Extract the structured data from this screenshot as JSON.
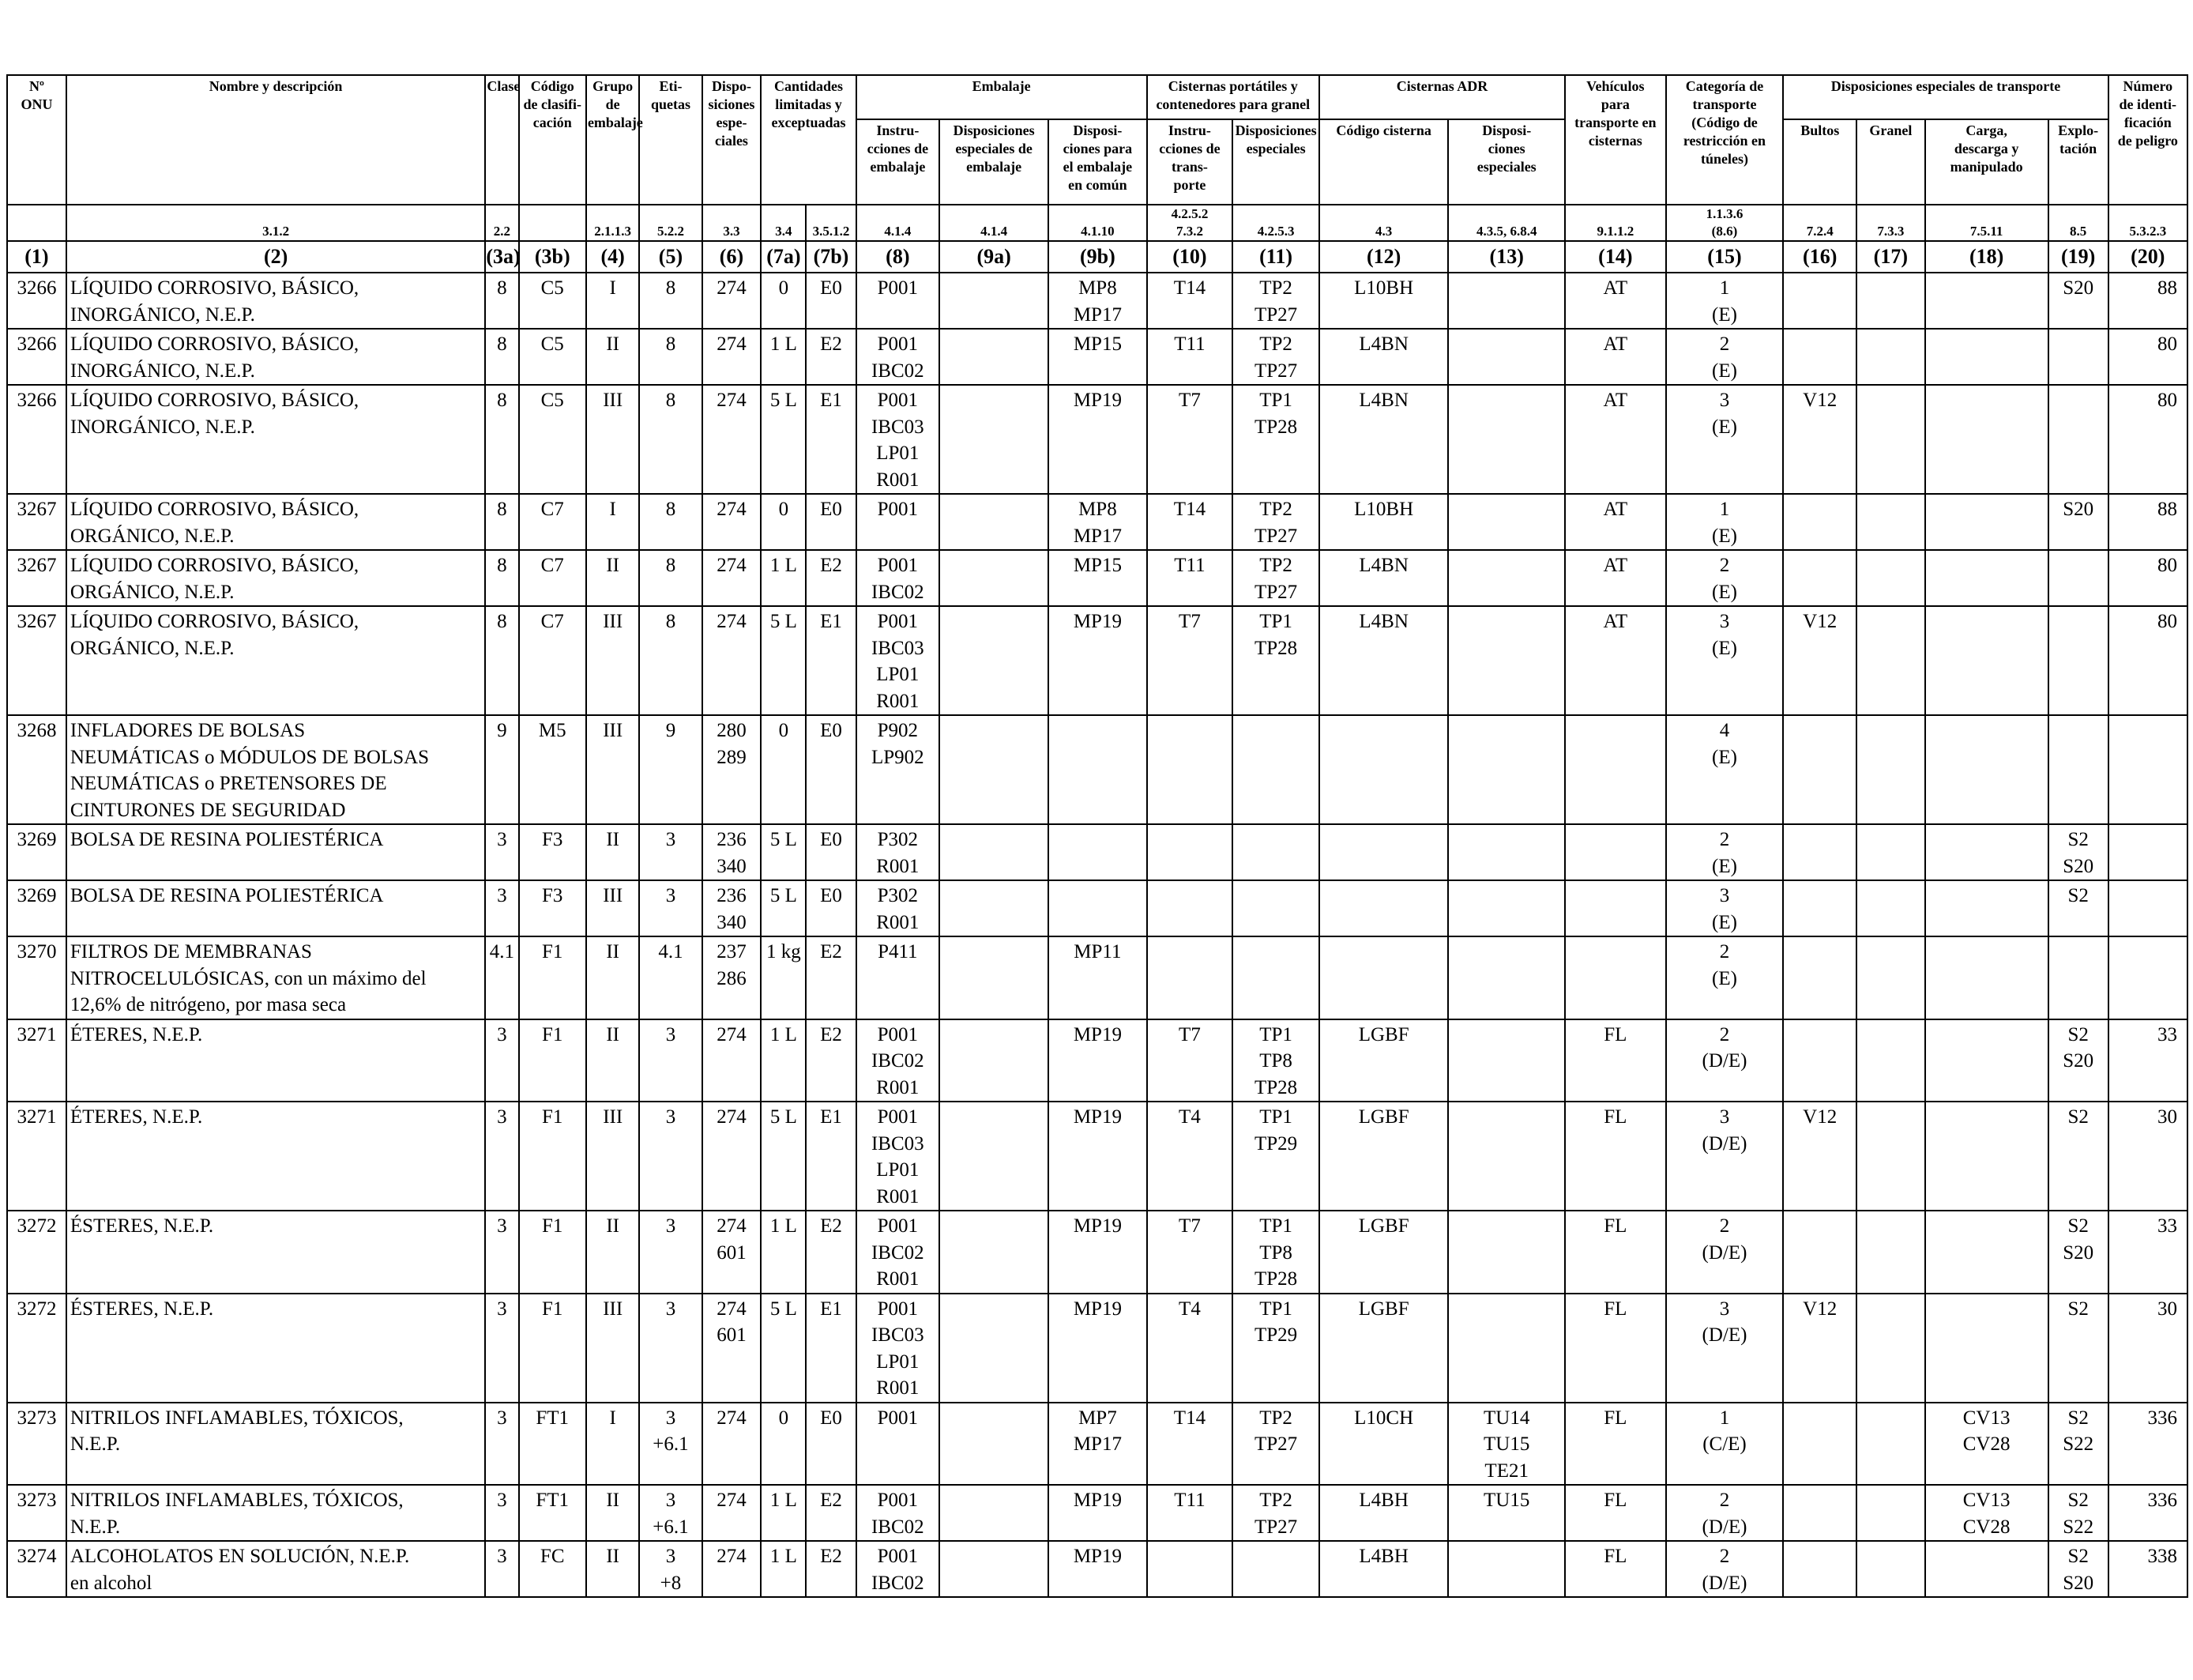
{
  "headers": {
    "c1": {
      "label": [
        "Nº",
        "ONU"
      ],
      "ref": ""
    },
    "c2": {
      "label": [
        "Nombre y descripción"
      ],
      "ref": "3.1.2"
    },
    "c3a": {
      "label": [
        "Clase"
      ],
      "ref": "2.2"
    },
    "c3b": {
      "label": [
        "Código",
        "de clasifi-",
        "cación"
      ],
      "ref": ""
    },
    "c4": {
      "label": [
        "Grupo de",
        "embalaje"
      ],
      "ref": "2.1.1.3"
    },
    "c5": {
      "label": [
        "Eti-",
        "quetas"
      ],
      "ref": "5.2.2"
    },
    "c6": {
      "label": [
        "Dispo-",
        "siciones",
        "espe-",
        "ciales"
      ],
      "ref": "3.3"
    },
    "c7": {
      "label": [
        "Cantidades",
        "limitadas y",
        "exceptuadas"
      ],
      "ref_a": "3.4",
      "ref_b": "3.5.1.2"
    },
    "embalaje": {
      "label": "Embalaje"
    },
    "c8": {
      "label": [
        "Instru-",
        "cciones de",
        "embalaje"
      ],
      "ref": "4.1.4"
    },
    "c9a": {
      "label": [
        "Disposiciones",
        "especiales de",
        "embalaje"
      ],
      "ref": "4.1.4"
    },
    "c9b": {
      "label": [
        "Disposi-",
        "ciones para",
        "el embalaje",
        "en común"
      ],
      "ref": "4.1.10"
    },
    "cisternas_portatiles": {
      "label": [
        "Cisternas portátiles y",
        "contenedores para granel"
      ]
    },
    "c10": {
      "label": [
        "Instru-",
        "cciones de",
        "trans-",
        "porte"
      ],
      "ref": [
        "4.2.5.2",
        "7.3.2"
      ]
    },
    "c11": {
      "label": [
        "Disposiciones",
        "especiales"
      ],
      "ref": "4.2.5.3"
    },
    "cisternas_adr": {
      "label": "Cisternas ADR"
    },
    "c12": {
      "label": [
        "Código cisterna"
      ],
      "ref": "4.3"
    },
    "c13": {
      "label": [
        "Disposi-",
        "ciones",
        "especiales"
      ],
      "ref": "4.3.5, 6.8.4"
    },
    "c14": {
      "label": [
        "Vehículos",
        "para",
        "transporte en",
        "cisternas"
      ],
      "ref": "9.1.1.2"
    },
    "c15": {
      "label": [
        "Categoría de",
        "transporte",
        "(Código de",
        "restricción en",
        "túneles)"
      ],
      "ref": [
        "1.1.3.6",
        "(8.6)"
      ]
    },
    "disposiciones_transporte": {
      "label": "Disposiciones especiales de transporte"
    },
    "c16": {
      "label": [
        "Bultos"
      ],
      "ref": "7.2.4"
    },
    "c17": {
      "label": [
        "Granel"
      ],
      "ref": "7.3.3"
    },
    "c18": {
      "label": [
        "Carga,",
        "descarga y",
        "manipulado"
      ],
      "ref": "7.5.11"
    },
    "c19": {
      "label": [
        "Explo-",
        "tación"
      ],
      "ref": "8.5"
    },
    "c20": {
      "label": [
        "Número",
        "de identi-",
        "ficación",
        "de peligro"
      ],
      "ref": "5.3.2.3"
    }
  },
  "column_numbers": [
    "(1)",
    "(2)",
    "(3a)",
    "(3b)",
    "(4)",
    "(5)",
    "(6)",
    "(7a)",
    "(7b)",
    "(8)",
    "(9a)",
    "(9b)",
    "(10)",
    "(11)",
    "(12)",
    "(13)",
    "(14)",
    "(15)",
    "(16)",
    "(17)",
    "(18)",
    "(19)",
    "(20)"
  ],
  "rows": [
    {
      "un": "3266",
      "name": [
        "LÍQUIDO CORROSIVO, BÁSICO,",
        "INORGÁNICO, N.E.P."
      ],
      "clase": "8",
      "codigo": "C5",
      "grupo": "I",
      "etiquetas": [
        "8"
      ],
      "disp": [
        "274"
      ],
      "lq": "0",
      "eq": "E0",
      "instr": [
        "P001"
      ],
      "disp_emb": [],
      "emb_comun": [
        "MP8",
        "MP17"
      ],
      "instr_cist": [
        "T14"
      ],
      "disp_cist": [
        "TP2",
        "TP27"
      ],
      "cod_cist": "L10BH",
      "disp_adr": [],
      "vehic": "AT",
      "cat": [
        "1",
        "(E)"
      ],
      "bultos": "",
      "granel": "",
      "carga": [],
      "explot": [
        "S20"
      ],
      "haz": "88"
    },
    {
      "un": "3266",
      "name": [
        "LÍQUIDO CORROSIVO, BÁSICO,",
        "INORGÁNICO, N.E.P."
      ],
      "clase": "8",
      "codigo": "C5",
      "grupo": "II",
      "etiquetas": [
        "8"
      ],
      "disp": [
        "274"
      ],
      "lq": "1 L",
      "eq": "E2",
      "instr": [
        "P001",
        "IBC02"
      ],
      "disp_emb": [],
      "emb_comun": [
        "MP15"
      ],
      "instr_cist": [
        "T11"
      ],
      "disp_cist": [
        "TP2",
        "TP27"
      ],
      "cod_cist": "L4BN",
      "disp_adr": [],
      "vehic": "AT",
      "cat": [
        "2",
        "(E)"
      ],
      "bultos": "",
      "granel": "",
      "carga": [],
      "explot": [],
      "haz": "80"
    },
    {
      "un": "3266",
      "name": [
        "LÍQUIDO CORROSIVO, BÁSICO,",
        "INORGÁNICO, N.E.P."
      ],
      "clase": "8",
      "codigo": "C5",
      "grupo": "III",
      "etiquetas": [
        "8"
      ],
      "disp": [
        "274"
      ],
      "lq": "5 L",
      "eq": "E1",
      "instr": [
        "P001",
        "IBC03",
        "LP01",
        "R001"
      ],
      "disp_emb": [],
      "emb_comun": [
        "MP19"
      ],
      "instr_cist": [
        "T7"
      ],
      "disp_cist": [
        "TP1",
        "TP28"
      ],
      "cod_cist": "L4BN",
      "disp_adr": [],
      "vehic": "AT",
      "cat": [
        "3",
        "(E)"
      ],
      "bultos": "V12",
      "granel": "",
      "carga": [],
      "explot": [],
      "haz": "80"
    },
    {
      "un": "3267",
      "name": [
        "LÍQUIDO CORROSIVO, BÁSICO,",
        "ORGÁNICO, N.E.P."
      ],
      "clase": "8",
      "codigo": "C7",
      "grupo": "I",
      "etiquetas": [
        "8"
      ],
      "disp": [
        "274"
      ],
      "lq": "0",
      "eq": "E0",
      "instr": [
        "P001"
      ],
      "disp_emb": [],
      "emb_comun": [
        "MP8",
        "MP17"
      ],
      "instr_cist": [
        "T14"
      ],
      "disp_cist": [
        "TP2",
        "TP27"
      ],
      "cod_cist": "L10BH",
      "disp_adr": [],
      "vehic": "AT",
      "cat": [
        "1",
        "(E)"
      ],
      "bultos": "",
      "granel": "",
      "carga": [],
      "explot": [
        "S20"
      ],
      "haz": "88"
    },
    {
      "un": "3267",
      "name": [
        "LÍQUIDO CORROSIVO, BÁSICO,",
        "ORGÁNICO, N.E.P."
      ],
      "clase": "8",
      "codigo": "C7",
      "grupo": "II",
      "etiquetas": [
        "8"
      ],
      "disp": [
        "274"
      ],
      "lq": "1 L",
      "eq": "E2",
      "instr": [
        "P001",
        "IBC02"
      ],
      "disp_emb": [],
      "emb_comun": [
        "MP15"
      ],
      "instr_cist": [
        "T11"
      ],
      "disp_cist": [
        "TP2",
        "TP27"
      ],
      "cod_cist": "L4BN",
      "disp_adr": [],
      "vehic": "AT",
      "cat": [
        "2",
        "(E)"
      ],
      "bultos": "",
      "granel": "",
      "carga": [],
      "explot": [],
      "haz": "80"
    },
    {
      "un": "3267",
      "name": [
        "LÍQUIDO CORROSIVO, BÁSICO,",
        "ORGÁNICO, N.E.P."
      ],
      "clase": "8",
      "codigo": "C7",
      "grupo": "III",
      "etiquetas": [
        "8"
      ],
      "disp": [
        "274"
      ],
      "lq": "5 L",
      "eq": "E1",
      "instr": [
        "P001",
        "IBC03",
        "LP01",
        "R001"
      ],
      "disp_emb": [],
      "emb_comun": [
        "MP19"
      ],
      "instr_cist": [
        "T7"
      ],
      "disp_cist": [
        "TP1",
        "TP28"
      ],
      "cod_cist": "L4BN",
      "disp_adr": [],
      "vehic": "AT",
      "cat": [
        "3",
        "(E)"
      ],
      "bultos": "V12",
      "granel": "",
      "carga": [],
      "explot": [],
      "haz": "80"
    },
    {
      "un": "3268",
      "name": [
        "INFLADORES DE BOLSAS",
        "NEUMÁTICAS o MÓDULOS DE BOLSAS",
        "NEUMÁTICAS o PRETENSORES DE",
        "CINTURONES DE SEGURIDAD"
      ],
      "clase": "9",
      "codigo": "M5",
      "grupo": "III",
      "etiquetas": [
        "9"
      ],
      "disp": [
        "280",
        "289"
      ],
      "lq": "0",
      "eq": "E0",
      "instr": [
        "P902",
        "LP902"
      ],
      "disp_emb": [],
      "emb_comun": [],
      "instr_cist": [],
      "disp_cist": [],
      "cod_cist": "",
      "disp_adr": [],
      "vehic": "",
      "cat": [
        "4",
        "(E)"
      ],
      "bultos": "",
      "granel": "",
      "carga": [],
      "explot": [],
      "haz": ""
    },
    {
      "un": "3269",
      "name": [
        "BOLSA DE RESINA POLIESTÉRICA"
      ],
      "clase": "3",
      "codigo": "F3",
      "grupo": "II",
      "etiquetas": [
        "3"
      ],
      "disp": [
        "236",
        "340"
      ],
      "lq": "5 L",
      "eq": "E0",
      "instr": [
        "P302",
        "R001"
      ],
      "disp_emb": [],
      "emb_comun": [],
      "instr_cist": [],
      "disp_cist": [],
      "cod_cist": "",
      "disp_adr": [],
      "vehic": "",
      "cat": [
        "2",
        "(E)"
      ],
      "bultos": "",
      "granel": "",
      "carga": [],
      "explot": [
        "S2",
        "S20"
      ],
      "haz": ""
    },
    {
      "un": "3269",
      "name": [
        "BOLSA DE RESINA POLIESTÉRICA"
      ],
      "clase": "3",
      "codigo": "F3",
      "grupo": "III",
      "etiquetas": [
        "3"
      ],
      "disp": [
        "236",
        "340"
      ],
      "lq": "5 L",
      "eq": "E0",
      "instr": [
        "P302",
        "R001"
      ],
      "disp_emb": [],
      "emb_comun": [],
      "instr_cist": [],
      "disp_cist": [],
      "cod_cist": "",
      "disp_adr": [],
      "vehic": "",
      "cat": [
        "3",
        "(E)"
      ],
      "bultos": "",
      "granel": "",
      "carga": [],
      "explot": [
        "S2"
      ],
      "haz": ""
    },
    {
      "un": "3270",
      "name": [
        "FILTROS DE MEMBRANAS",
        "NITROCELULÓSICAS, con un máximo del",
        "12,6% de nitrógeno, por masa seca"
      ],
      "clase": "4.1",
      "codigo": "F1",
      "grupo": "II",
      "etiquetas": [
        "4.1"
      ],
      "disp": [
        "237",
        "286"
      ],
      "lq": "1 kg",
      "eq": "E2",
      "instr": [
        "P411"
      ],
      "disp_emb": [],
      "emb_comun": [
        "MP11"
      ],
      "instr_cist": [],
      "disp_cist": [],
      "cod_cist": "",
      "disp_adr": [],
      "vehic": "",
      "cat": [
        "2",
        "(E)"
      ],
      "bultos": "",
      "granel": "",
      "carga": [],
      "explot": [],
      "haz": ""
    },
    {
      "un": "3271",
      "name": [
        "ÉTERES, N.E.P."
      ],
      "clase": "3",
      "codigo": "F1",
      "grupo": "II",
      "etiquetas": [
        "3"
      ],
      "disp": [
        "274"
      ],
      "lq": "1 L",
      "eq": "E2",
      "instr": [
        "P001",
        "IBC02",
        "R001"
      ],
      "disp_emb": [],
      "emb_comun": [
        "MP19"
      ],
      "instr_cist": [
        "T7"
      ],
      "disp_cist": [
        "TP1",
        "TP8",
        "TP28"
      ],
      "cod_cist": "LGBF",
      "disp_adr": [],
      "vehic": "FL",
      "cat": [
        "2",
        "(D/E)"
      ],
      "bultos": "",
      "granel": "",
      "carga": [],
      "explot": [
        "S2",
        "S20"
      ],
      "haz": "33"
    },
    {
      "un": "3271",
      "name": [
        "ÉTERES, N.E.P."
      ],
      "clase": "3",
      "codigo": "F1",
      "grupo": "III",
      "etiquetas": [
        "3"
      ],
      "disp": [
        "274"
      ],
      "lq": "5 L",
      "eq": "E1",
      "instr": [
        "P001",
        "IBC03",
        "LP01",
        "R001"
      ],
      "disp_emb": [],
      "emb_comun": [
        "MP19"
      ],
      "instr_cist": [
        "T4"
      ],
      "disp_cist": [
        "TP1",
        "TP29"
      ],
      "cod_cist": "LGBF",
      "disp_adr": [],
      "vehic": "FL",
      "cat": [
        "3",
        "(D/E)"
      ],
      "bultos": "V12",
      "granel": "",
      "carga": [],
      "explot": [
        "S2"
      ],
      "haz": "30"
    },
    {
      "un": "3272",
      "name": [
        "ÉSTERES, N.E.P."
      ],
      "clase": "3",
      "codigo": "F1",
      "grupo": "II",
      "etiquetas": [
        "3"
      ],
      "disp": [
        "274",
        "601"
      ],
      "lq": "1 L",
      "eq": "E2",
      "instr": [
        "P001",
        "IBC02",
        "R001"
      ],
      "disp_emb": [],
      "emb_comun": [
        "MP19"
      ],
      "instr_cist": [
        "T7"
      ],
      "disp_cist": [
        "TP1",
        "TP8",
        "TP28"
      ],
      "cod_cist": "LGBF",
      "disp_adr": [],
      "vehic": "FL",
      "cat": [
        "2",
        "(D/E)"
      ],
      "bultos": "",
      "granel": "",
      "carga": [],
      "explot": [
        "S2",
        "S20"
      ],
      "haz": "33"
    },
    {
      "un": "3272",
      "name": [
        "ÉSTERES, N.E.P."
      ],
      "clase": "3",
      "codigo": "F1",
      "grupo": "III",
      "etiquetas": [
        "3"
      ],
      "disp": [
        "274",
        "601"
      ],
      "lq": "5 L",
      "eq": "E1",
      "instr": [
        "P001",
        "IBC03",
        "LP01",
        "R001"
      ],
      "disp_emb": [],
      "emb_comun": [
        "MP19"
      ],
      "instr_cist": [
        "T4"
      ],
      "disp_cist": [
        "TP1",
        "TP29"
      ],
      "cod_cist": "LGBF",
      "disp_adr": [],
      "vehic": "FL",
      "cat": [
        "3",
        "(D/E)"
      ],
      "bultos": "V12",
      "granel": "",
      "carga": [],
      "explot": [
        "S2"
      ],
      "haz": "30"
    },
    {
      "un": "3273",
      "name": [
        "NITRILOS INFLAMABLES, TÓXICOS,",
        "N.E.P."
      ],
      "clase": "3",
      "codigo": "FT1",
      "grupo": "I",
      "etiquetas": [
        "3",
        "+6.1"
      ],
      "disp": [
        "274"
      ],
      "lq": "0",
      "eq": "E0",
      "instr": [
        "P001"
      ],
      "disp_emb": [],
      "emb_comun": [
        "MP7",
        "MP17"
      ],
      "instr_cist": [
        "T14"
      ],
      "disp_cist": [
        "TP2",
        "TP27"
      ],
      "cod_cist": "L10CH",
      "disp_adr": [
        "TU14",
        "TU15",
        "TE21"
      ],
      "vehic": "FL",
      "cat": [
        "1",
        "(C/E)"
      ],
      "bultos": "",
      "granel": "",
      "carga": [
        "CV13",
        "CV28"
      ],
      "explot": [
        "S2",
        "S22"
      ],
      "haz": "336"
    },
    {
      "un": "3273",
      "name": [
        "NITRILOS INFLAMABLES, TÓXICOS,",
        "N.E.P."
      ],
      "clase": "3",
      "codigo": "FT1",
      "grupo": "II",
      "etiquetas": [
        "3",
        "+6.1"
      ],
      "disp": [
        "274"
      ],
      "lq": "1 L",
      "eq": "E2",
      "instr": [
        "P001",
        "IBC02"
      ],
      "disp_emb": [],
      "emb_comun": [
        "MP19"
      ],
      "instr_cist": [
        "T11"
      ],
      "disp_cist": [
        "TP2",
        "TP27"
      ],
      "cod_cist": "L4BH",
      "disp_adr": [
        "TU15"
      ],
      "vehic": "FL",
      "cat": [
        "2",
        "(D/E)"
      ],
      "bultos": "",
      "granel": "",
      "carga": [
        "CV13",
        "CV28"
      ],
      "explot": [
        "S2",
        "S22"
      ],
      "haz": "336"
    },
    {
      "un": "3274",
      "name": [
        "ALCOHOLATOS EN SOLUCIÓN, N.E.P.",
        "en alcohol"
      ],
      "clase": "3",
      "codigo": "FC",
      "grupo": "II",
      "etiquetas": [
        "3",
        "+8"
      ],
      "disp": [
        "274"
      ],
      "lq": "1 L",
      "eq": "E2",
      "instr": [
        "P001",
        "IBC02"
      ],
      "disp_emb": [],
      "emb_comun": [
        "MP19"
      ],
      "instr_cist": [],
      "disp_cist": [],
      "cod_cist": "L4BH",
      "disp_adr": [],
      "vehic": "FL",
      "cat": [
        "2",
        "(D/E)"
      ],
      "bultos": "",
      "granel": "",
      "carga": [],
      "explot": [
        "S2",
        "S20"
      ],
      "haz": "338"
    }
  ]
}
